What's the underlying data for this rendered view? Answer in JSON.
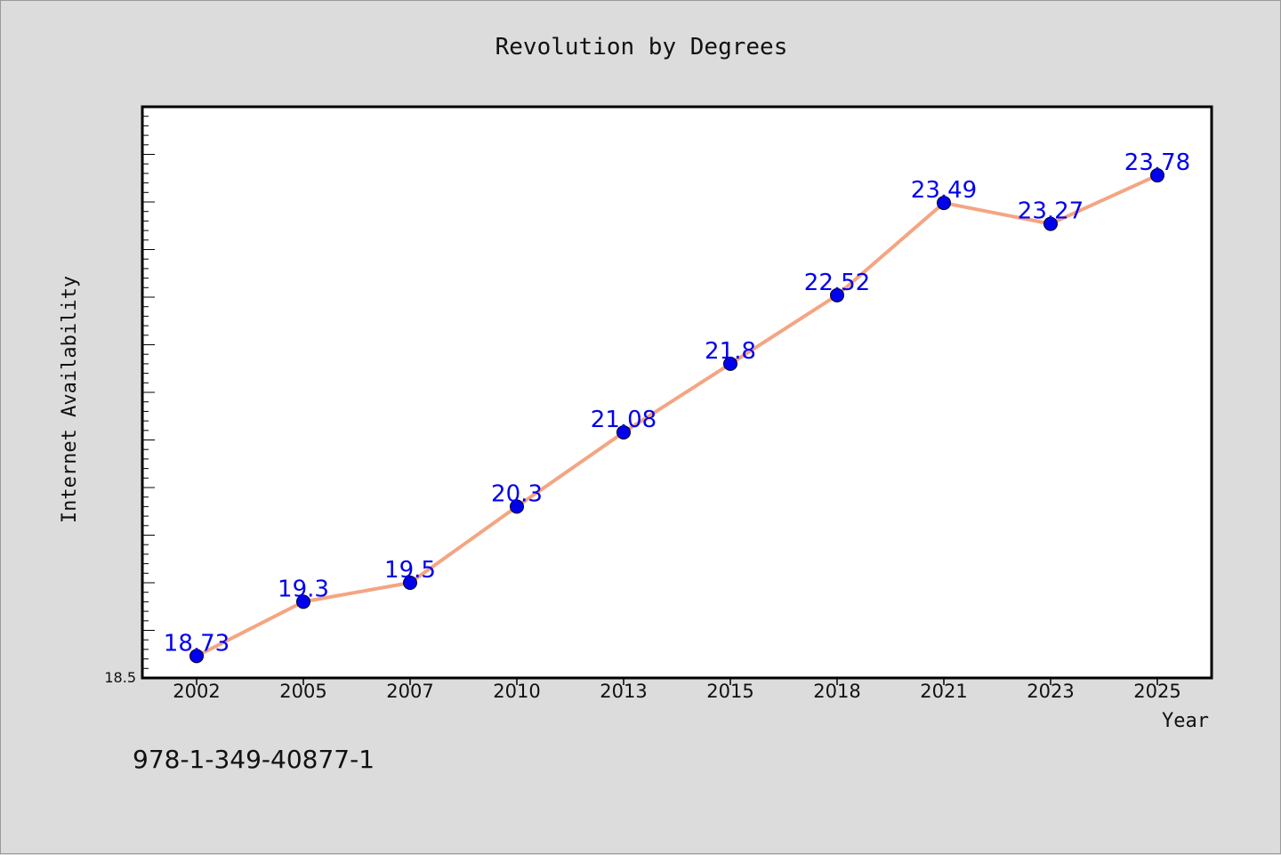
{
  "chart_data": {
    "type": "line",
    "title": "Revolution by Degrees",
    "xlabel": "Year",
    "ylabel": "Internet Availability",
    "categories": [
      "2002",
      "2005",
      "2007",
      "2010",
      "2013",
      "2015",
      "2018",
      "2021",
      "2023",
      "2025"
    ],
    "values": [
      18.73,
      19.3,
      19.5,
      20.3,
      21.08,
      21.8,
      22.52,
      23.49,
      23.27,
      23.78
    ],
    "data_labels": [
      "18.73",
      "19.3",
      "19.5",
      "20.3",
      "21.08",
      "21.8",
      "22.52",
      "23.49",
      "23.27",
      "23.78"
    ],
    "y_tick_labels": [
      "18.5"
    ],
    "ylim": [
      18.5,
      24.5
    ],
    "grid": false,
    "colors": {
      "line": "#f4a582",
      "marker": "#0000ee",
      "data_label": "#0000ee",
      "plot_bg": "#ffffff",
      "page_bg": "#dcdcdc"
    }
  },
  "footer": {
    "isbn": "978-1-349-40877-1"
  }
}
